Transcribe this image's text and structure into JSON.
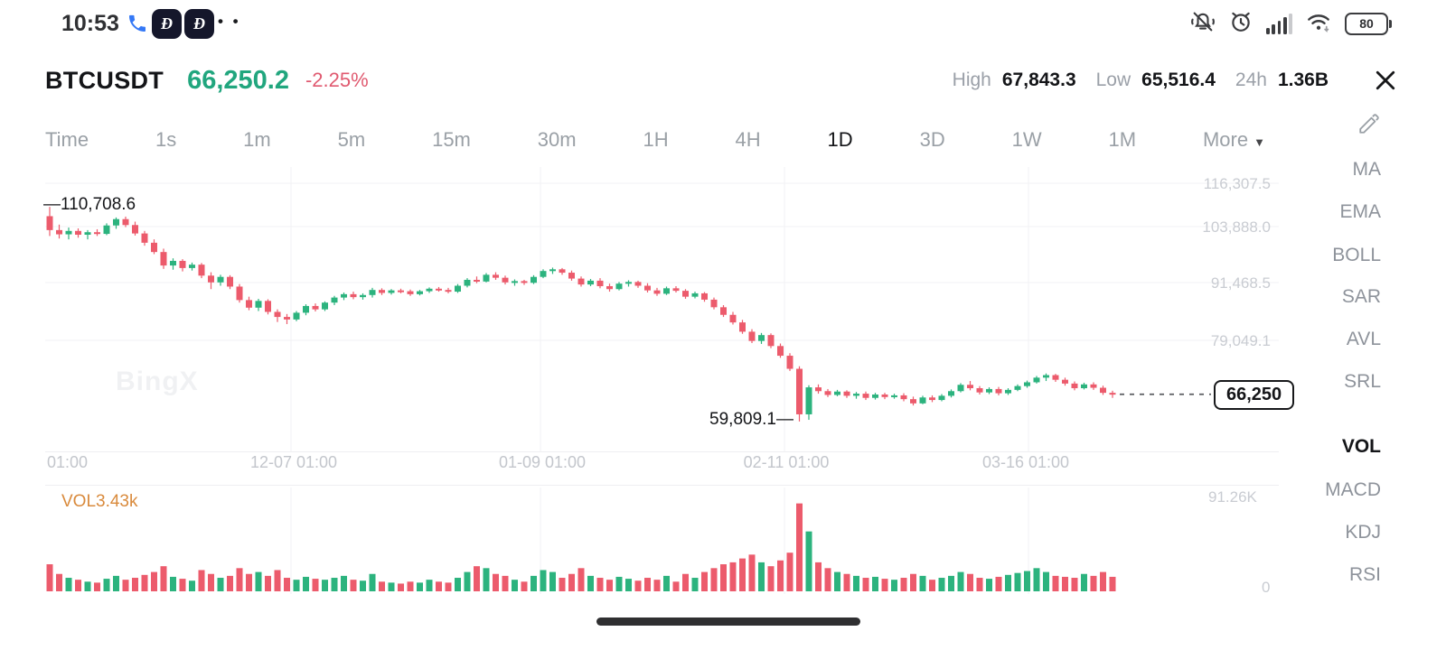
{
  "status_bar": {
    "time": "10:53",
    "app_glyph": "Ð",
    "dots": "• •",
    "battery": "80"
  },
  "header": {
    "symbol": "BTCUSDT",
    "price": "66,250.2",
    "change": "-2.25%",
    "high_label": "High",
    "high": "67,843.3",
    "low_label": "Low",
    "low": "65,516.4",
    "range_label": "24h",
    "turnover": "1.36B"
  },
  "timeframes": {
    "items": [
      "Time",
      "1s",
      "1m",
      "5m",
      "15m",
      "30m",
      "1H",
      "4H",
      "1D",
      "3D",
      "1W",
      "1M"
    ],
    "active": "1D",
    "more_label": "More",
    "more_caret": "▼"
  },
  "indicators": {
    "main": [
      "MA",
      "EMA",
      "BOLL",
      "SAR",
      "AVL",
      "SRL"
    ],
    "sub": [
      "VOL",
      "MACD",
      "KDJ",
      "RSI"
    ],
    "active_sub": "VOL"
  },
  "watermark": "BingX",
  "volume_pane": {
    "label": "VOL3.43k",
    "max_label": "91.26K",
    "zero_label": "0"
  },
  "colors": {
    "up": "#2cb37e",
    "down": "#ec5b6c",
    "price_green": "#21a67e",
    "change_red": "#e05a70",
    "vol_label_orange": "#d98a3c",
    "grid": "#f2f2f4",
    "axis_text": "#c9ccd2"
  },
  "chart_data": {
    "type": "candlestick",
    "title": "BTCUSDT 1D chart",
    "interval": "1D",
    "units": "price in thousands USDT, volume in K",
    "y_ticks": [
      "116,307.5",
      "103,888.0",
      "91,468.5",
      "79,049.1"
    ],
    "y_tick_values": [
      116307.5,
      103888.0,
      91468.5,
      79049.1
    ],
    "x_ticks": [
      "01:00",
      "12-07 01:00",
      "01-09 01:00",
      "02-11 01:00",
      "03-16 01:00"
    ],
    "high_annotation": "110,708.6",
    "high_pointer": "—",
    "low_annotation": "59,809.1",
    "low_pointer": "—",
    "last_price_label": "66,250",
    "last_price": 66250,
    "ylim_k": [
      54.0,
      120.2
    ],
    "grid": true,
    "volume_max_k": 91.26,
    "candles": [
      [
        108.5,
        110.7,
        103.8,
        105.2
      ],
      [
        105.2,
        106.5,
        103.2,
        104.2
      ],
      [
        104.2,
        105.8,
        103.0,
        105.0
      ],
      [
        105.0,
        105.6,
        103.4,
        104.1
      ],
      [
        104.1,
        105.2,
        103.0,
        104.7
      ],
      [
        104.7,
        105.4,
        103.8,
        104.3
      ],
      [
        104.3,
        106.8,
        104.0,
        106.3
      ],
      [
        106.3,
        108.2,
        105.5,
        107.8
      ],
      [
        107.8,
        108.4,
        105.9,
        106.4
      ],
      [
        106.4,
        107.2,
        103.9,
        104.4
      ],
      [
        104.4,
        105.0,
        101.5,
        102.2
      ],
      [
        102.2,
        103.0,
        99.5,
        100.0
      ],
      [
        100.0,
        100.8,
        96.0,
        96.8
      ],
      [
        96.8,
        98.5,
        95.8,
        97.9
      ],
      [
        97.9,
        98.3,
        95.4,
        96.2
      ],
      [
        96.2,
        97.5,
        95.6,
        97.0
      ],
      [
        97.0,
        97.4,
        93.8,
        94.4
      ],
      [
        94.4,
        95.2,
        91.2,
        92.8
      ],
      [
        92.8,
        94.6,
        92.0,
        94.1
      ],
      [
        94.1,
        94.5,
        91.2,
        91.8
      ],
      [
        91.8,
        92.4,
        88.0,
        88.6
      ],
      [
        88.6,
        89.4,
        86.2,
        86.8
      ],
      [
        86.8,
        88.9,
        86.0,
        88.4
      ],
      [
        88.4,
        88.8,
        85.2,
        85.8
      ],
      [
        85.8,
        86.4,
        83.4,
        84.6
      ],
      [
        84.6,
        85.3,
        82.9,
        84.0
      ],
      [
        84.0,
        86.0,
        83.6,
        85.6
      ],
      [
        85.6,
        87.6,
        85.0,
        87.2
      ],
      [
        87.2,
        87.8,
        85.9,
        86.4
      ],
      [
        86.4,
        88.3,
        86.0,
        88.0
      ],
      [
        88.0,
        89.6,
        87.4,
        89.2
      ],
      [
        89.2,
        90.4,
        88.6,
        90.0
      ],
      [
        90.0,
        90.6,
        88.8,
        89.3
      ],
      [
        89.3,
        90.2,
        88.7,
        89.8
      ],
      [
        89.8,
        91.5,
        89.2,
        91.0
      ],
      [
        91.0,
        91.4,
        89.8,
        90.3
      ],
      [
        90.3,
        91.2,
        89.9,
        90.9
      ],
      [
        90.9,
        91.3,
        90.2,
        90.7
      ],
      [
        90.7,
        91.1,
        89.6,
        90.0
      ],
      [
        90.0,
        91.0,
        89.7,
        90.7
      ],
      [
        90.7,
        91.6,
        90.3,
        91.3
      ],
      [
        91.3,
        91.7,
        90.6,
        91.0
      ],
      [
        91.0,
        91.5,
        90.2,
        90.6
      ],
      [
        90.6,
        92.4,
        90.3,
        92.0
      ],
      [
        92.0,
        93.8,
        91.6,
        93.4
      ],
      [
        93.4,
        94.2,
        92.6,
        93.0
      ],
      [
        93.0,
        95.0,
        92.8,
        94.6
      ],
      [
        94.6,
        95.2,
        93.4,
        93.9
      ],
      [
        93.9,
        94.4,
        92.3,
        92.8
      ],
      [
        92.8,
        93.5,
        92.0,
        93.1
      ],
      [
        93.1,
        93.4,
        92.2,
        92.7
      ],
      [
        92.7,
        94.5,
        92.4,
        94.1
      ],
      [
        94.1,
        95.9,
        93.8,
        95.5
      ],
      [
        95.5,
        96.3,
        94.8,
        95.9
      ],
      [
        95.9,
        96.2,
        94.6,
        95.1
      ],
      [
        95.1,
        95.6,
        93.2,
        93.7
      ],
      [
        93.7,
        94.2,
        91.8,
        92.3
      ],
      [
        92.3,
        93.6,
        91.9,
        93.2
      ],
      [
        93.2,
        93.8,
        91.4,
        91.9
      ],
      [
        91.9,
        92.5,
        90.6,
        91.2
      ],
      [
        91.2,
        92.9,
        90.9,
        92.5
      ],
      [
        92.5,
        93.3,
        91.8,
        92.9
      ],
      [
        92.9,
        93.2,
        91.5,
        92.0
      ],
      [
        92.0,
        92.6,
        90.4,
        90.9
      ],
      [
        90.9,
        91.5,
        89.6,
        90.1
      ],
      [
        90.1,
        91.8,
        89.8,
        91.4
      ],
      [
        91.4,
        91.9,
        90.4,
        90.8
      ],
      [
        90.8,
        91.2,
        88.9,
        89.4
      ],
      [
        89.4,
        90.6,
        89.0,
        90.2
      ],
      [
        90.2,
        90.5,
        88.2,
        88.7
      ],
      [
        88.7,
        89.2,
        86.4,
        86.9
      ],
      [
        86.9,
        87.4,
        84.6,
        85.1
      ],
      [
        85.1,
        85.8,
        82.8,
        83.3
      ],
      [
        83.3,
        83.9,
        80.6,
        81.1
      ],
      [
        81.1,
        81.7,
        78.4,
        78.9
      ],
      [
        78.9,
        80.8,
        78.2,
        80.3
      ],
      [
        80.3,
        80.7,
        77.2,
        77.7
      ],
      [
        77.7,
        78.3,
        74.9,
        75.4
      ],
      [
        75.4,
        76.0,
        71.8,
        72.3
      ],
      [
        72.3,
        72.9,
        59.81,
        61.5
      ],
      [
        61.5,
        68.4,
        60.2,
        67.9
      ],
      [
        67.9,
        68.6,
        66.4,
        67.0
      ],
      [
        67.0,
        67.5,
        65.6,
        66.1
      ],
      [
        66.1,
        67.3,
        65.8,
        66.9
      ],
      [
        66.9,
        67.2,
        65.4,
        65.9
      ],
      [
        65.9,
        66.8,
        65.2,
        66.4
      ],
      [
        66.4,
        66.9,
        64.9,
        65.4
      ],
      [
        65.4,
        66.6,
        65.0,
        66.2
      ],
      [
        66.2,
        66.6,
        65.1,
        65.6
      ],
      [
        65.6,
        66.4,
        65.2,
        66.0
      ],
      [
        66.0,
        66.5,
        64.6,
        65.1
      ],
      [
        65.1,
        65.7,
        63.6,
        64.1
      ],
      [
        64.1,
        65.9,
        63.9,
        65.5
      ],
      [
        65.5,
        66.0,
        64.4,
        64.9
      ],
      [
        64.9,
        66.3,
        64.6,
        65.9
      ],
      [
        65.9,
        67.4,
        65.5,
        67.0
      ],
      [
        67.0,
        68.9,
        66.7,
        68.5
      ],
      [
        68.5,
        69.4,
        67.2,
        67.7
      ],
      [
        67.7,
        68.2,
        66.2,
        66.7
      ],
      [
        66.7,
        67.9,
        66.3,
        67.5
      ],
      [
        67.5,
        68.0,
        66.0,
        66.5
      ],
      [
        66.5,
        67.7,
        66.1,
        67.3
      ],
      [
        67.3,
        68.6,
        67.0,
        68.2
      ],
      [
        68.2,
        69.5,
        67.8,
        69.1
      ],
      [
        69.1,
        70.6,
        68.8,
        70.2
      ],
      [
        70.2,
        71.2,
        69.4,
        70.8
      ],
      [
        70.8,
        71.1,
        69.2,
        69.7
      ],
      [
        69.7,
        70.2,
        68.3,
        68.8
      ],
      [
        68.8,
        69.3,
        67.2,
        67.7
      ],
      [
        67.7,
        69.0,
        67.4,
        68.6
      ],
      [
        68.6,
        69.1,
        67.3,
        67.8
      ],
      [
        67.8,
        68.3,
        66.1,
        66.6
      ],
      [
        66.6,
        67.1,
        65.4,
        66.25
      ]
    ],
    "volumes_k": [
      28,
      18,
      14,
      12,
      10,
      9,
      13,
      16,
      12,
      14,
      17,
      20,
      26,
      15,
      13,
      11,
      22,
      18,
      14,
      16,
      24,
      18,
      20,
      16,
      22,
      14,
      12,
      15,
      13,
      12,
      14,
      16,
      12,
      11,
      18,
      10,
      9,
      8,
      10,
      9,
      12,
      10,
      9,
      14,
      20,
      26,
      24,
      18,
      16,
      12,
      10,
      16,
      22,
      20,
      14,
      18,
      24,
      16,
      14,
      12,
      15,
      13,
      11,
      14,
      12,
      16,
      10,
      18,
      14,
      20,
      24,
      28,
      30,
      34,
      38,
      30,
      26,
      32,
      40,
      91,
      62,
      30,
      24,
      20,
      18,
      16,
      14,
      15,
      13,
      12,
      14,
      18,
      16,
      12,
      14,
      16,
      20,
      18,
      14,
      13,
      15,
      17,
      19,
      21,
      24,
      20,
      16,
      15,
      14,
      18,
      16,
      20,
      15
    ]
  }
}
